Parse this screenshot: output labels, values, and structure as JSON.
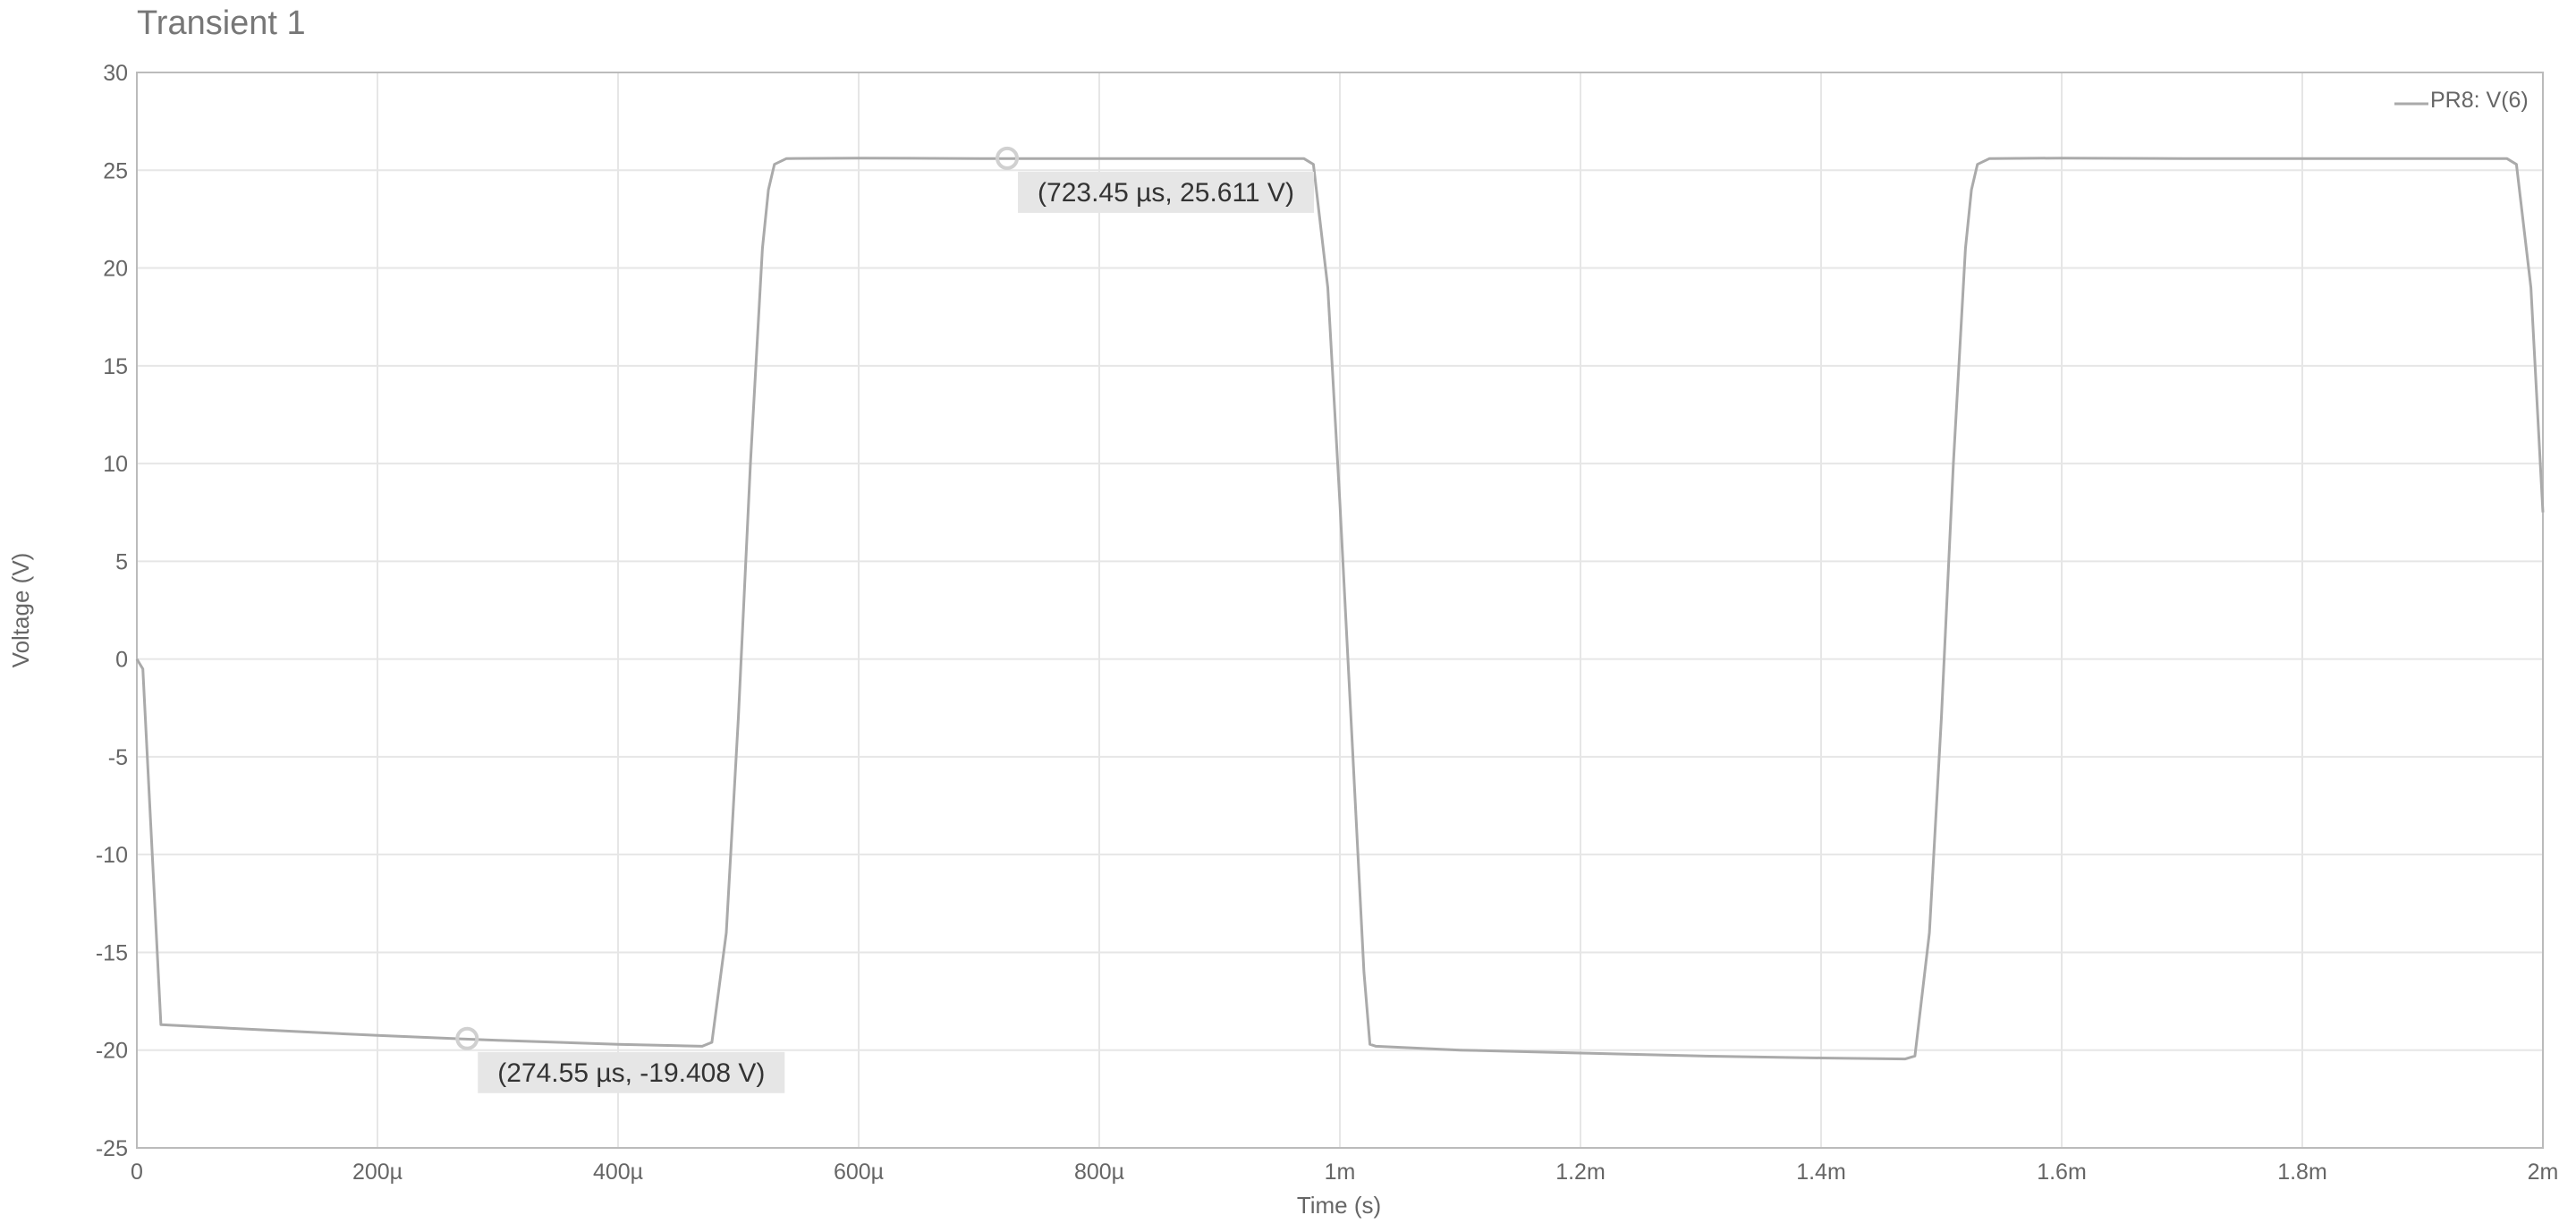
{
  "chart_data": {
    "type": "line",
    "title": "Transient 1",
    "xlabel": "Time (s)",
    "ylabel": "Voltage (V)",
    "xlim": [
      0,
      0.002
    ],
    "ylim": [
      -25,
      30
    ],
    "grid": true,
    "legend_position": "top-right",
    "x_ticks": [
      {
        "value": 0,
        "label": "0"
      },
      {
        "value": 0.0002,
        "label": "200µ"
      },
      {
        "value": 0.0004,
        "label": "400µ"
      },
      {
        "value": 0.0006,
        "label": "600µ"
      },
      {
        "value": 0.0008,
        "label": "800µ"
      },
      {
        "value": 0.001,
        "label": "1m"
      },
      {
        "value": 0.0012,
        "label": "1.2m"
      },
      {
        "value": 0.0014,
        "label": "1.4m"
      },
      {
        "value": 0.0016,
        "label": "1.6m"
      },
      {
        "value": 0.0018,
        "label": "1.8m"
      },
      {
        "value": 0.002,
        "label": "2m"
      }
    ],
    "y_ticks": [
      {
        "value": 30,
        "label": "30"
      },
      {
        "value": 25,
        "label": "25"
      },
      {
        "value": 20,
        "label": "20"
      },
      {
        "value": 15,
        "label": "15"
      },
      {
        "value": 10,
        "label": "10"
      },
      {
        "value": 5,
        "label": "5"
      },
      {
        "value": 0,
        "label": "0"
      },
      {
        "value": -5,
        "label": "-5"
      },
      {
        "value": -10,
        "label": "-10"
      },
      {
        "value": -15,
        "label": "-15"
      },
      {
        "value": -20,
        "label": "-20"
      },
      {
        "value": -25,
        "label": "-25"
      }
    ],
    "series": [
      {
        "name": "PR8: V(6)",
        "color": "#aaaaaa",
        "x": [
          0,
          5e-06,
          2e-05,
          0.0001,
          0.0002,
          0.0003,
          0.0004,
          0.00047,
          0.000478,
          0.00049,
          0.0005,
          0.00051,
          0.00052,
          0.000525,
          0.00053,
          0.00054,
          0.0006,
          0.0007,
          0.0008,
          0.0009,
          0.00097,
          0.000978,
          0.00099,
          0.001,
          0.00101,
          0.00102,
          0.001025,
          0.00103,
          0.0011,
          0.0012,
          0.0013,
          0.0014,
          0.00147,
          0.001478,
          0.00149,
          0.0015,
          0.00151,
          0.00152,
          0.001525,
          0.00153,
          0.00154,
          0.0016,
          0.0017,
          0.0018,
          0.0019,
          0.00197,
          0.001978,
          0.00199,
          0.002
        ],
        "y": [
          0,
          -0.5,
          -18.7,
          -18.95,
          -19.25,
          -19.5,
          -19.7,
          -19.8,
          -19.6,
          -14.0,
          -3.0,
          10.0,
          21.0,
          24.0,
          25.3,
          25.6,
          25.62,
          25.6,
          25.6,
          25.6,
          25.6,
          25.3,
          19.0,
          8.0,
          -4.0,
          -16.0,
          -19.7,
          -19.8,
          -20.0,
          -20.15,
          -20.3,
          -20.4,
          -20.45,
          -20.3,
          -14.0,
          -3.0,
          10.0,
          21.0,
          24.0,
          25.3,
          25.6,
          25.62,
          25.6,
          25.6,
          25.6,
          25.6,
          25.3,
          19.0,
          7.5
        ]
      }
    ],
    "annotations": [
      {
        "x": 0.00072345,
        "y": 25.611,
        "label": "(723.45 µs, 25.611 V)"
      },
      {
        "x": 0.00027455,
        "y": -19.408,
        "label": "(274.55 µs, -19.408 V)"
      }
    ]
  }
}
